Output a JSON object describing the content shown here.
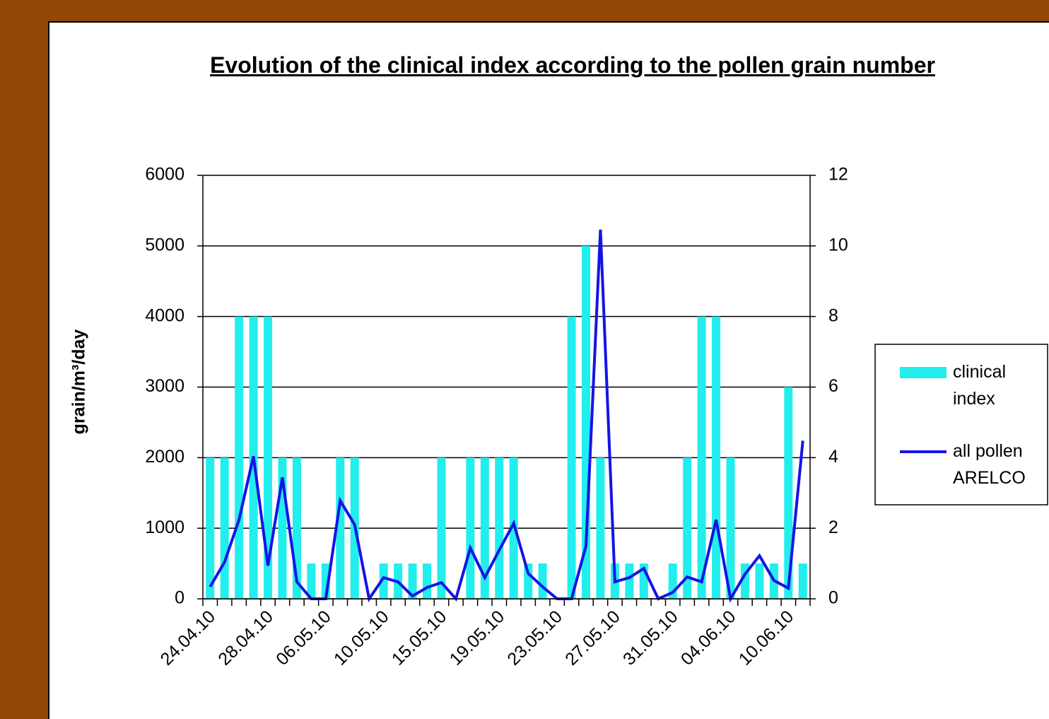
{
  "chart_data": {
    "type": "bar_line",
    "title": "Evolution of the clinical index according to the pollen grain number",
    "y_label": "grain/m³/day",
    "categories": [
      "24.04.10",
      null,
      null,
      null,
      "28.04.10",
      null,
      null,
      null,
      "06.05.10",
      null,
      null,
      null,
      "10.05.10",
      null,
      null,
      null,
      "15.05.10",
      null,
      null,
      null,
      "19.05.10",
      null,
      null,
      null,
      "23.05.10",
      null,
      null,
      null,
      "27.05.10",
      null,
      null,
      null,
      "31.05.10",
      null,
      null,
      null,
      "04.06.10",
      null,
      null,
      null,
      "10.06.10",
      null
    ],
    "series": [
      {
        "name": "clinical index",
        "type": "bar",
        "axis": "y2",
        "color": "#22eeee",
        "values": [
          4,
          4,
          8,
          8,
          8,
          4,
          4,
          1,
          1,
          4,
          4,
          0,
          1,
          1,
          1,
          1,
          4,
          0,
          4,
          4,
          4,
          4,
          1,
          1,
          0,
          8,
          10,
          4,
          1,
          1,
          1,
          0,
          1,
          4,
          8,
          8,
          4,
          1,
          1,
          1,
          6,
          1
        ]
      },
      {
        "name": "all pollen ARELCO",
        "type": "line",
        "axis": "y",
        "color": "#1414e6",
        "values": [
          170,
          520,
          1120,
          2020,
          470,
          1720,
          240,
          0,
          0,
          1390,
          1050,
          0,
          300,
          240,
          40,
          160,
          230,
          0,
          720,
          300,
          690,
          1070,
          360,
          170,
          0,
          0,
          750,
          5230,
          240,
          300,
          430,
          0,
          90,
          310,
          240,
          1120,
          0,
          350,
          610,
          260,
          150,
          2240
        ]
      }
    ],
    "ylim": [
      0,
      6000
    ],
    "yticks": [
      0,
      1000,
      2000,
      3000,
      4000,
      5000,
      6000
    ],
    "y2lim": [
      0,
      12
    ],
    "y2ticks": [
      0,
      2,
      4,
      6,
      8,
      10,
      12
    ],
    "grid": true,
    "legend": "right"
  }
}
